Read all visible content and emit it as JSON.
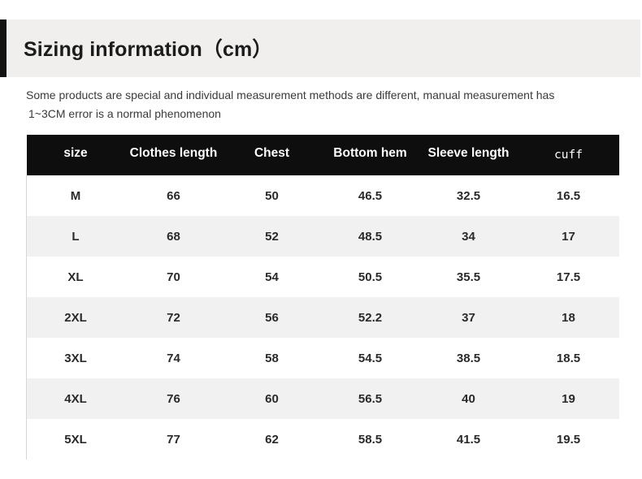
{
  "header": {
    "title": "Sizing information（cm）"
  },
  "note": {
    "line1": "Some products are special and individual measurement methods are different, manual measurement has",
    "line2": "1~3CM error is a normal phenomenon"
  },
  "table": {
    "headers": [
      "size",
      "Clothes length",
      "Chest",
      "Bottom hem",
      "Sleeve length",
      "cuff"
    ],
    "rows": [
      [
        "M",
        "66",
        "50",
        "46.5",
        "32.5",
        "16.5"
      ],
      [
        "L",
        "68",
        "52",
        "48.5",
        "34",
        "17"
      ],
      [
        "XL",
        "70",
        "54",
        "50.5",
        "35.5",
        "17.5"
      ],
      [
        "2XL",
        "72",
        "56",
        "52.2",
        "37",
        "18"
      ],
      [
        "3XL",
        "74",
        "58",
        "54.5",
        "38.5",
        "18.5"
      ],
      [
        "4XL",
        "76",
        "60",
        "56.5",
        "40",
        "19"
      ],
      [
        "5XL",
        "77",
        "62",
        "58.5",
        "41.5",
        "19.5"
      ]
    ]
  },
  "colors": {
    "header_band": "#f0efed",
    "accent_bar": "#121212",
    "table_header": "#0e0e0e",
    "row_alt": "#f1f1f1"
  }
}
